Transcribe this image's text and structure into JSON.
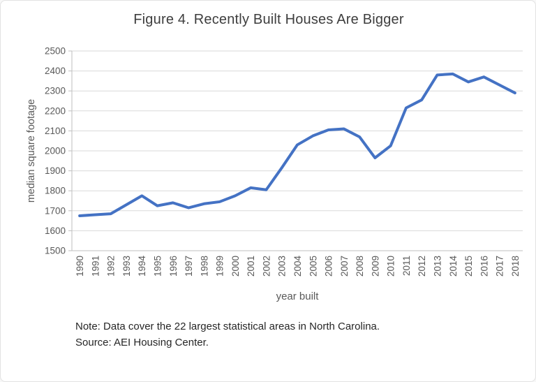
{
  "figure": {
    "title": "Figure 4. Recently Built Houses Are Bigger",
    "note": "Note: Data cover the 22 largest statistical areas in North Carolina.",
    "source": "Source: AEI Housing Center."
  },
  "chart_data": {
    "type": "line",
    "title": "Figure 4. Recently Built Houses Are Bigger",
    "xlabel": "year built",
    "ylabel": "median square footage",
    "x": [
      1990,
      1991,
      1992,
      1993,
      1994,
      1995,
      1996,
      1997,
      1998,
      1999,
      2000,
      2001,
      2002,
      2003,
      2004,
      2005,
      2006,
      2007,
      2008,
      2009,
      2010,
      2011,
      2012,
      2013,
      2014,
      2015,
      2016,
      2017,
      2018
    ],
    "series": [
      {
        "name": "median square footage",
        "values": [
          1675,
          1680,
          1685,
          1730,
          1775,
          1725,
          1740,
          1715,
          1735,
          1745,
          1775,
          1815,
          1805,
          1915,
          2030,
          2075,
          2105,
          2110,
          2070,
          1965,
          2025,
          2215,
          2255,
          2380,
          2385,
          2345,
          2370,
          2330,
          2290
        ]
      }
    ],
    "ylim": [
      1500,
      2500
    ],
    "ytick_step": 100,
    "grid": true,
    "legend": false,
    "line_color": "#4472C4"
  },
  "colors": {
    "line": "#4472C4",
    "gridline": "#D9D9D9",
    "axis": "#BFBFBF",
    "tick_text": "#595959",
    "title_text": "#3E3E3E",
    "note_text": "#262626",
    "background": "#FFFFFF"
  }
}
